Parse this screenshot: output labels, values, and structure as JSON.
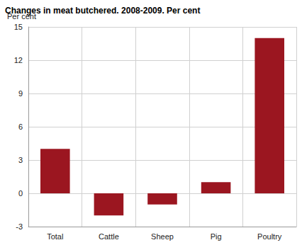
{
  "chart_data": {
    "type": "bar",
    "title": "Changes in meat butchered. 2008-2009. Per cent",
    "y_label": "Per cent",
    "categories": [
      "Total",
      "Cattle",
      "Sheep",
      "Pig",
      "Poultry"
    ],
    "values": [
      4,
      -2,
      -1,
      1,
      14
    ],
    "color": "#9b1620",
    "ylim": [
      -3,
      15
    ],
    "yticks": [
      -3,
      0,
      3,
      6,
      9,
      12,
      15
    ],
    "grid": true
  }
}
